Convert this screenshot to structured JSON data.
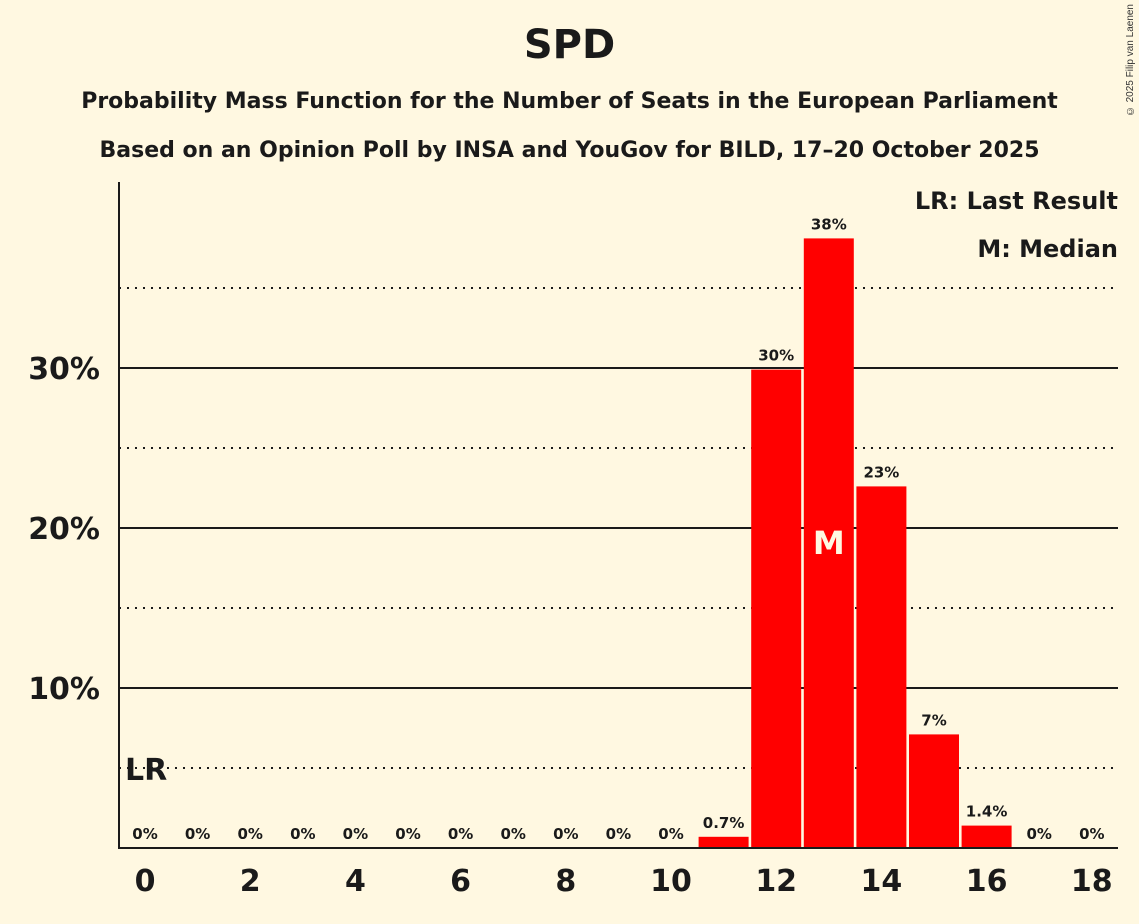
{
  "chart_data": {
    "type": "bar",
    "title": "SPD",
    "subtitle": "Probability Mass Function for the Number of Seats in the European Parliament",
    "subtitle2": "Based on an Opinion Poll by INSA and YouGov for BILD, 17–20 October 2025",
    "xlabel": "",
    "ylabel": "",
    "x": [
      0,
      1,
      2,
      3,
      4,
      5,
      6,
      7,
      8,
      9,
      10,
      11,
      12,
      13,
      14,
      15,
      16,
      17,
      18
    ],
    "values": [
      0,
      0,
      0,
      0,
      0,
      0,
      0,
      0,
      0,
      0,
      0,
      0.7,
      29.9,
      38.1,
      22.6,
      7.1,
      1.4,
      0,
      0
    ],
    "data_labels": [
      "0%",
      "0%",
      "0%",
      "0%",
      "0%",
      "0%",
      "0%",
      "0%",
      "0%",
      "0%",
      "0%",
      "0.7%",
      "30%",
      "38%",
      "23%",
      "7%",
      "1.4%",
      "0%",
      "0%"
    ],
    "x_tick_labels": [
      "0",
      "2",
      "4",
      "6",
      "8",
      "10",
      "12",
      "14",
      "16",
      "18"
    ],
    "x_ticks": [
      0,
      2,
      4,
      6,
      8,
      10,
      12,
      14,
      16,
      18
    ],
    "y_ticks": [
      10,
      20,
      30
    ],
    "y_tick_labels": [
      "10%",
      "20%",
      "30%"
    ],
    "y_minor_gridlines": [
      5,
      15,
      25,
      35
    ],
    "ylim": [
      0,
      41.5
    ],
    "grid": true,
    "bar_color": "#ff0000",
    "last_result": {
      "seat": 0,
      "label": "LR"
    },
    "median": {
      "seat": 13,
      "label": "M"
    },
    "legend": [
      "LR: Last Result",
      "M: Median"
    ],
    "legend_position": "top-right"
  },
  "copyright": "© 2025 Filip van Laenen"
}
